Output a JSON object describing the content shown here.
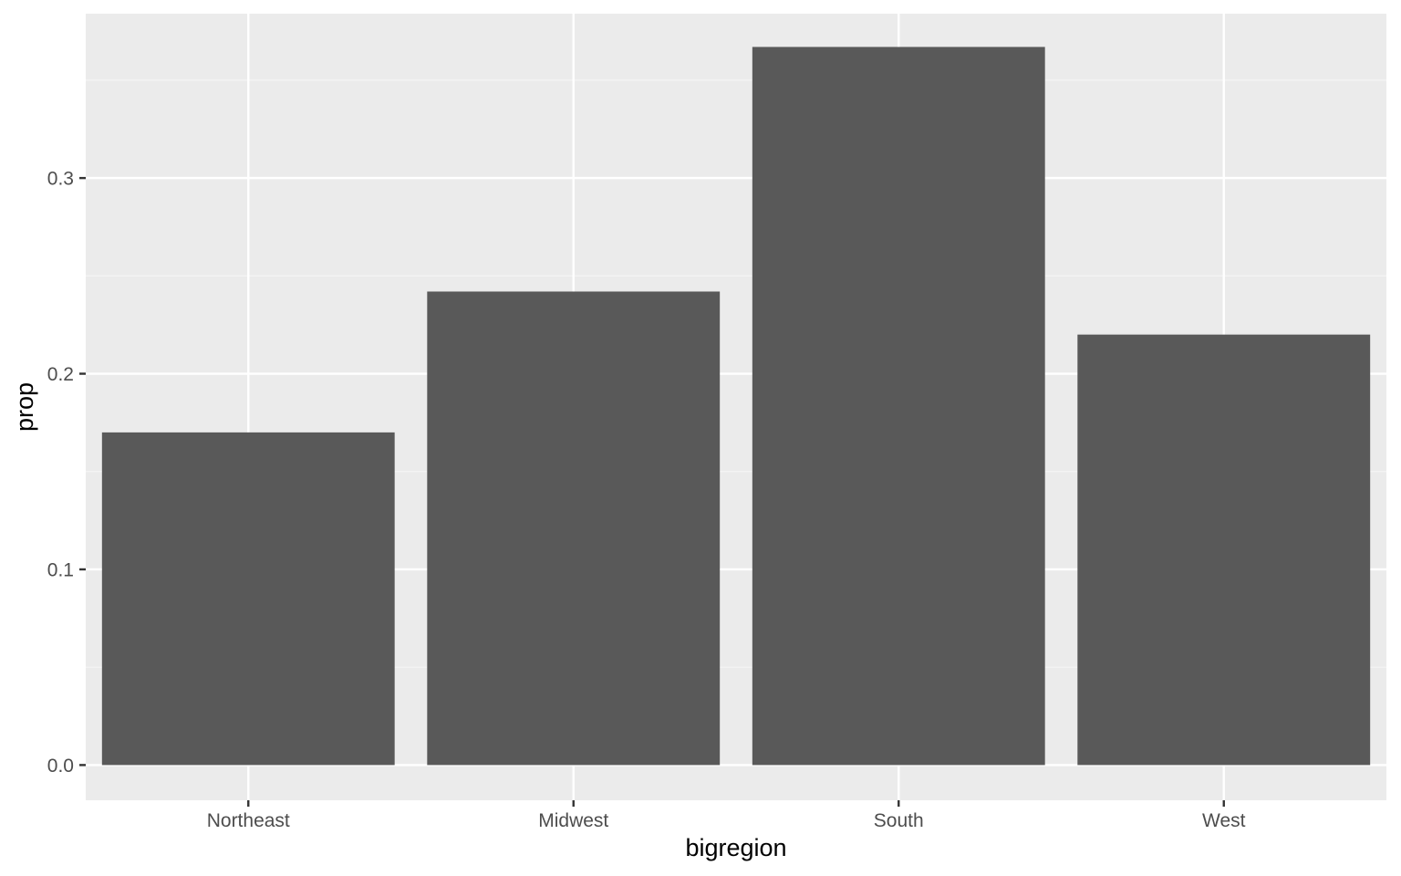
{
  "chart_data": {
    "type": "bar",
    "categories": [
      "Northeast",
      "Midwest",
      "South",
      "West"
    ],
    "values": [
      0.17,
      0.242,
      0.367,
      0.22
    ],
    "title": "",
    "xlabel": "bigregion",
    "ylabel": "prop",
    "ylim": [
      -0.018,
      0.384
    ],
    "yticks": [
      0.0,
      0.1,
      0.2,
      0.3
    ],
    "ytick_labels": [
      "0.0",
      "0.1",
      "0.2",
      "0.3"
    ],
    "grid": true,
    "legend": "none",
    "colors": {
      "panel_background": "#ebebeb",
      "grid_major": "#ffffff",
      "grid_minor": "#f5f5f5",
      "bar_fill": "#595959",
      "tick_text": "#4d4d4d",
      "axis_title": "#000000",
      "tick_mark": "#333333"
    }
  }
}
